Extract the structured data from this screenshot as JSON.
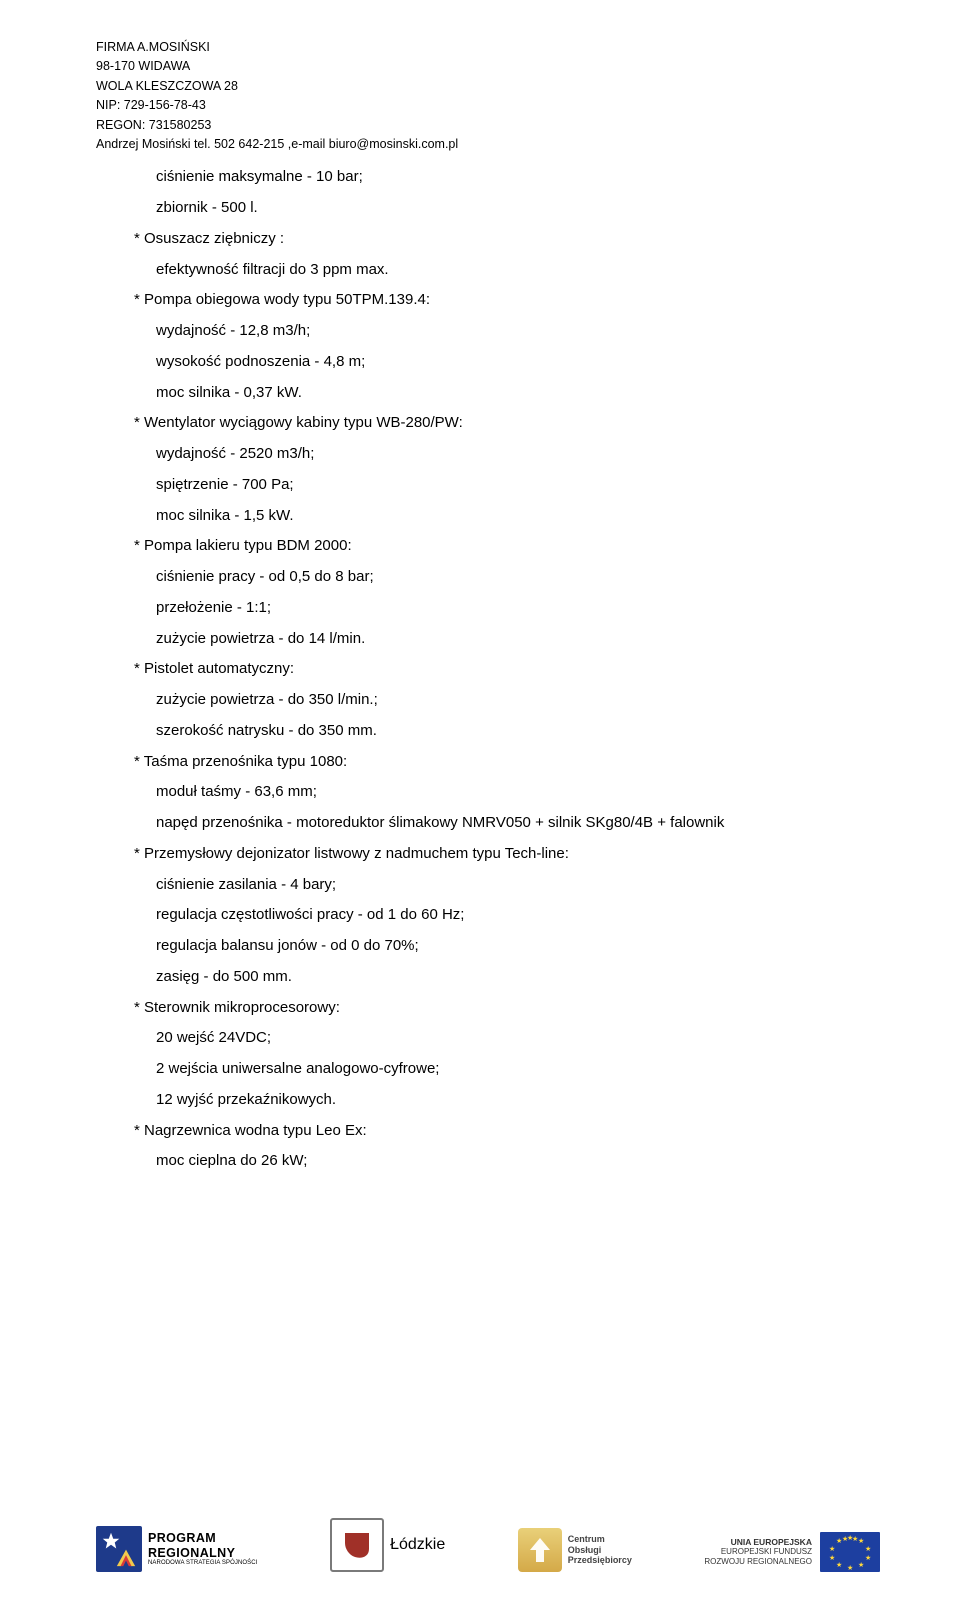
{
  "header": {
    "lines": [
      "FIRMA A.MOSIŃSKI",
      "98-170 WIDAWA",
      "WOLA KLESZCZOWA 28",
      "NIP: 729-156-78-43",
      "REGON: 731580253",
      "Andrzej Mosiński tel. 502 642-215 ,e-mail biuro@mosinski.com.pl"
    ]
  },
  "body": {
    "lines": [
      {
        "t": "ciśnienie maksymalne - 10 bar;",
        "sub": true
      },
      {
        "t": "zbiornik - 500 l.",
        "sub": true
      },
      {
        "t": "* Osuszacz ziębniczy :",
        "sub": false
      },
      {
        "t": "efektywność filtracji do 3 ppm max.",
        "sub": true
      },
      {
        "t": "* Pompa obiegowa wody typu 50TPM.139.4:",
        "sub": false
      },
      {
        "t": "wydajność - 12,8 m3/h;",
        "sub": true
      },
      {
        "t": "wysokość podnoszenia - 4,8 m;",
        "sub": true
      },
      {
        "t": "moc silnika - 0,37 kW.",
        "sub": true
      },
      {
        "t": "* Wentylator wyciągowy kabiny typu WB-280/PW:",
        "sub": false
      },
      {
        "t": "wydajność - 2520 m3/h;",
        "sub": true
      },
      {
        "t": "spiętrzenie -  700 Pa;",
        "sub": true
      },
      {
        "t": "moc silnika - 1,5 kW.",
        "sub": true
      },
      {
        "t": "* Pompa lakieru typu BDM 2000:",
        "sub": false
      },
      {
        "t": "ciśnienie pracy - od 0,5 do 8 bar;",
        "sub": true
      },
      {
        "t": "przełożenie - 1:1;",
        "sub": true
      },
      {
        "t": "zużycie powietrza - do 14 l/min.",
        "sub": true
      },
      {
        "t": "* Pistolet automatyczny:",
        "sub": false
      },
      {
        "t": "zużycie powietrza - do 350 l/min.;",
        "sub": true
      },
      {
        "t": "szerokość natrysku - do 350 mm.",
        "sub": true
      },
      {
        "t": "* Taśma przenośnika typu 1080:",
        "sub": false
      },
      {
        "t": "moduł taśmy - 63,6 mm;",
        "sub": true
      },
      {
        "t": "napęd przenośnika - motoreduktor ślimakowy NMRV050 + silnik SKg80/4B + falownik",
        "sub": true
      },
      {
        "t": "* Przemysłowy dejonizator listwowy z nadmuchem typu Tech-line:",
        "sub": false
      },
      {
        "t": "ciśnienie zasilania - 4 bary;",
        "sub": true
      },
      {
        "t": "regulacja częstotliwości pracy - od 1 do 60 Hz;",
        "sub": true
      },
      {
        "t": "regulacja balansu jonów - od 0 do 70%;",
        "sub": true
      },
      {
        "t": "zasięg - do 500 mm.",
        "sub": true
      },
      {
        "t": "* Sterownik mikroprocesorowy:",
        "sub": false
      },
      {
        "t": "20 wejść 24VDC;",
        "sub": true
      },
      {
        "t": "2 wejścia uniwersalne analogowo-cyfrowe;",
        "sub": true
      },
      {
        "t": "12 wyjść przekaźnikowych.",
        "sub": true
      },
      {
        "t": "* Nagrzewnica wodna typu Leo Ex:",
        "sub": false
      },
      {
        "t": "moc cieplna do 26 kW;",
        "sub": true
      }
    ]
  },
  "footer": {
    "pr": {
      "line1": "PROGRAM",
      "line2": "REGIONALNY",
      "sub": "NARODOWA STRATEGIA SPÓJNOŚCI"
    },
    "lodz": {
      "label": "Łódzkie"
    },
    "cop": {
      "l1": "Centrum",
      "l2": "Obsługi",
      "l3": "Przedsiębiorcy"
    },
    "ue": {
      "l1": "UNIA EUROPEJSKA",
      "l2": "EUROPEJSKI FUNDUSZ",
      "l3": "ROZWOJU REGIONALNEGO"
    }
  },
  "colors": {
    "text": "#000000",
    "pr_bg": "#1e3a8a",
    "pr_star": "#ffffff",
    "pr_red": "#d83a3a",
    "pr_yellow": "#f2c94c",
    "lodz_border": "#7a7a7a",
    "lodz_shape": "#a03028",
    "cop_bg1": "#e9d079",
    "cop_bg2": "#d4a948",
    "ue_bg": "#1d3fa0",
    "ue_star": "#ffd83b"
  }
}
